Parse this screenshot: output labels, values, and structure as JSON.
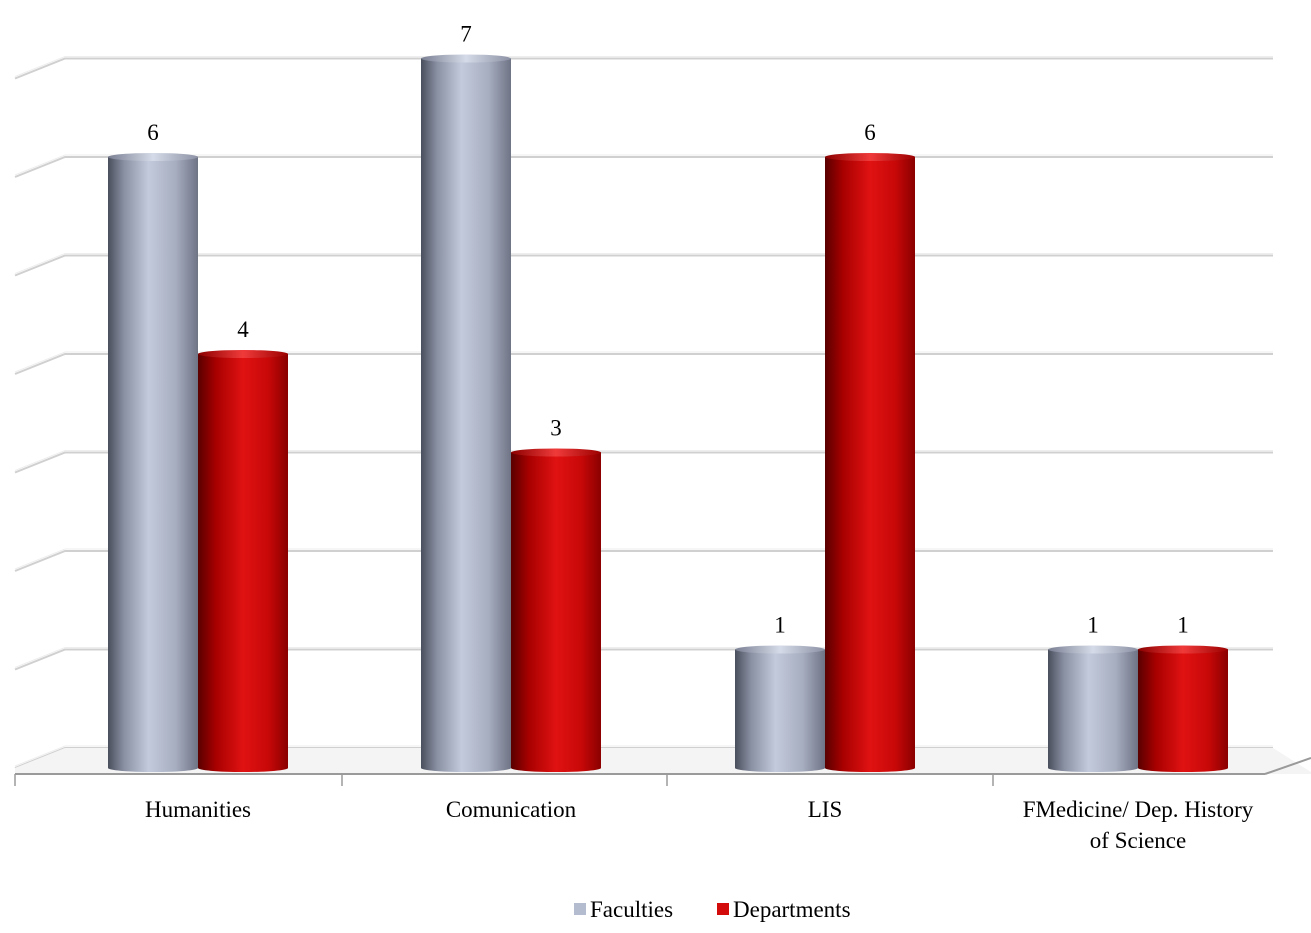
{
  "chart_data": {
    "type": "bar",
    "categories": [
      "Humanities",
      "Comunication",
      "LIS",
      "FMedicine/ Dep. History of Science"
    ],
    "category_lines": [
      [
        "Humanities"
      ],
      [
        "Comunication"
      ],
      [
        "LIS"
      ],
      [
        "FMedicine/ Dep. History",
        "of Science"
      ]
    ],
    "series": [
      {
        "name": "Faculties",
        "values": [
          6,
          7,
          1,
          1
        ]
      },
      {
        "name": "Departments",
        "values": [
          4,
          3,
          6,
          1
        ]
      }
    ],
    "data_labels": true,
    "ylim": [
      0,
      7
    ],
    "grid": true,
    "legend_position": "bottom",
    "colors": {
      "Faculties": "#b4bccf",
      "Departments": "#d40b0b",
      "grid": "#d0d0d0",
      "axis": "#9a9a9a"
    }
  }
}
